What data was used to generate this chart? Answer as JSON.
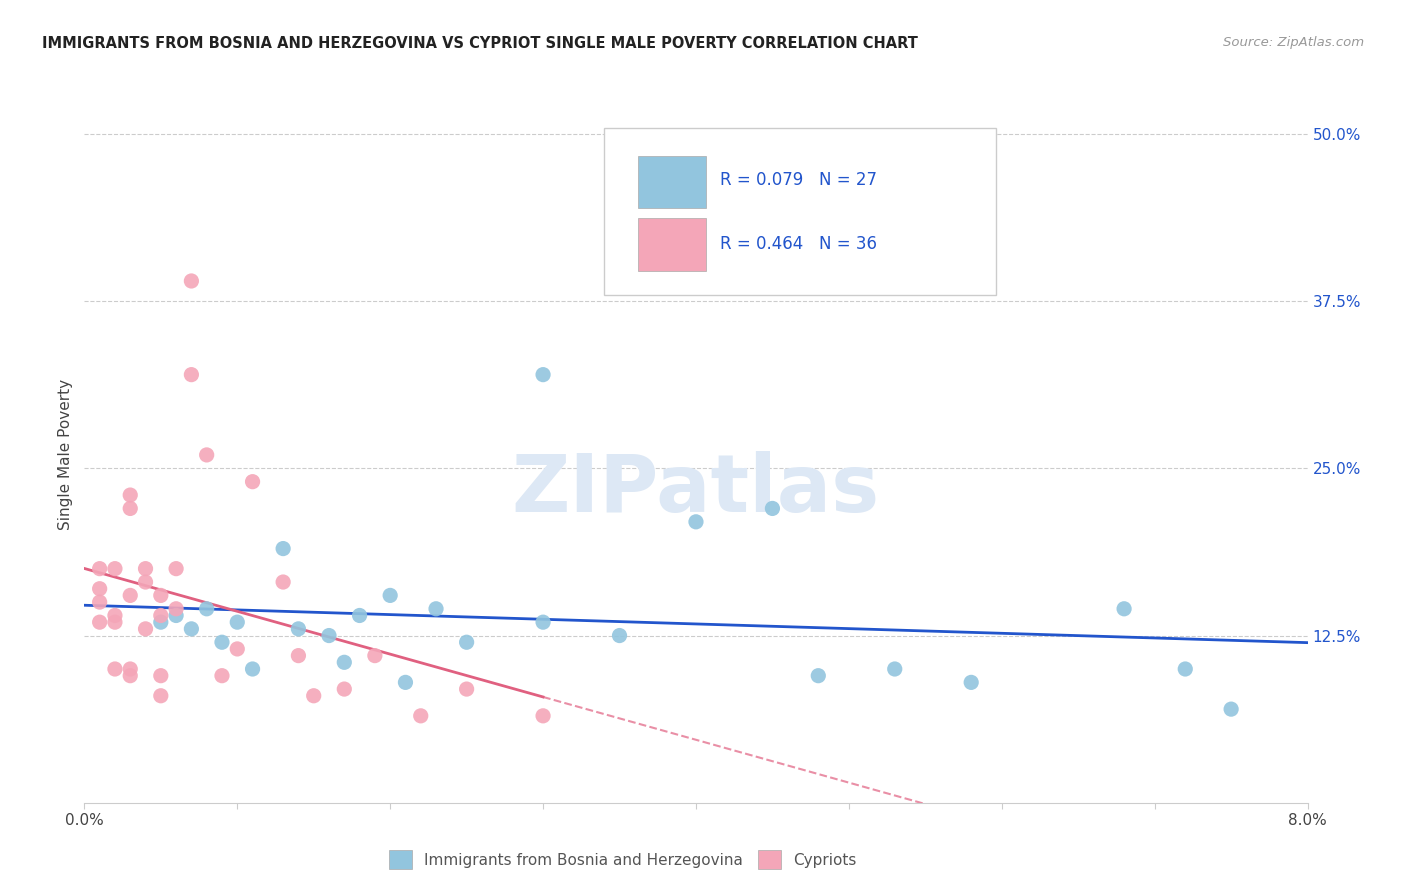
{
  "title": "IMMIGRANTS FROM BOSNIA AND HERZEGOVINA VS CYPRIOT SINGLE MALE POVERTY CORRELATION CHART",
  "source": "Source: ZipAtlas.com",
  "ylabel": "Single Male Poverty",
  "yticks_labels": [
    "12.5%",
    "25.0%",
    "37.5%",
    "50.0%"
  ],
  "ytick_vals": [
    0.125,
    0.25,
    0.375,
    0.5
  ],
  "xlim": [
    0.0,
    0.08
  ],
  "ylim": [
    0.0,
    0.52
  ],
  "blue_scatter_color": "#92c5de",
  "pink_scatter_color": "#f4a6b8",
  "trend_blue_color": "#2255cc",
  "trend_pink_color": "#e06080",
  "legend_text_color": "#2255cc",
  "R_blue": 0.079,
  "N_blue": 27,
  "R_pink": 0.464,
  "N_pink": 36,
  "legend_label_blue": "Immigrants from Bosnia and Herzegovina",
  "legend_label_pink": "Cypriots",
  "blue_points_x": [
    0.005,
    0.006,
    0.007,
    0.008,
    0.009,
    0.01,
    0.011,
    0.013,
    0.014,
    0.016,
    0.017,
    0.018,
    0.02,
    0.021,
    0.023,
    0.025,
    0.03,
    0.03,
    0.035,
    0.04,
    0.045,
    0.048,
    0.053,
    0.058,
    0.068,
    0.072,
    0.075
  ],
  "blue_points_y": [
    0.135,
    0.14,
    0.13,
    0.145,
    0.12,
    0.135,
    0.1,
    0.19,
    0.13,
    0.125,
    0.105,
    0.14,
    0.155,
    0.09,
    0.145,
    0.12,
    0.32,
    0.135,
    0.125,
    0.21,
    0.22,
    0.095,
    0.1,
    0.09,
    0.145,
    0.1,
    0.07
  ],
  "pink_points_x": [
    0.001,
    0.001,
    0.001,
    0.001,
    0.002,
    0.002,
    0.002,
    0.002,
    0.003,
    0.003,
    0.003,
    0.003,
    0.003,
    0.004,
    0.004,
    0.004,
    0.005,
    0.005,
    0.005,
    0.005,
    0.006,
    0.006,
    0.007,
    0.007,
    0.008,
    0.009,
    0.01,
    0.011,
    0.013,
    0.014,
    0.015,
    0.017,
    0.019,
    0.022,
    0.025,
    0.03
  ],
  "pink_points_y": [
    0.135,
    0.15,
    0.16,
    0.175,
    0.1,
    0.135,
    0.14,
    0.175,
    0.155,
    0.22,
    0.23,
    0.095,
    0.1,
    0.165,
    0.175,
    0.13,
    0.14,
    0.155,
    0.08,
    0.095,
    0.145,
    0.175,
    0.39,
    0.32,
    0.26,
    0.095,
    0.115,
    0.24,
    0.165,
    0.11,
    0.08,
    0.085,
    0.11,
    0.065,
    0.085,
    0.065
  ],
  "grid_color": "#cccccc",
  "spine_color": "#cccccc",
  "watermark_text": "ZIPatlas",
  "watermark_color": "#dde8f5"
}
